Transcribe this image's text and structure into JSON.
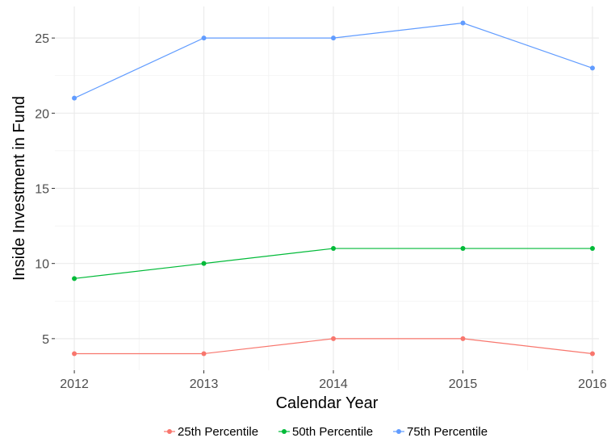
{
  "chart_data": {
    "type": "line",
    "title": "",
    "xlabel": "Calendar Year",
    "ylabel": "Inside Investment in Fund",
    "x": [
      2012,
      2013,
      2014,
      2015,
      2016
    ],
    "x_tick_labels": [
      "2012",
      "2013",
      "2014",
      "2015",
      "2016"
    ],
    "y_ticks": [
      5,
      10,
      15,
      20,
      25
    ],
    "y_tick_labels": [
      "5",
      "10",
      "15",
      "20",
      "25"
    ],
    "xlim": [
      2011.85,
      2016.05
    ],
    "ylim": [
      2.9,
      27.1
    ],
    "grid": true,
    "legend_position": "bottom",
    "series": [
      {
        "name": "25th Percentile",
        "color": "#F8766D",
        "values": [
          4,
          4,
          5,
          5,
          4
        ]
      },
      {
        "name": "50th Percentile",
        "color": "#00BA38",
        "values": [
          9,
          10,
          11,
          11,
          11
        ]
      },
      {
        "name": "75th Percentile",
        "color": "#619CFF",
        "values": [
          21,
          25,
          25,
          26,
          23
        ]
      }
    ]
  }
}
